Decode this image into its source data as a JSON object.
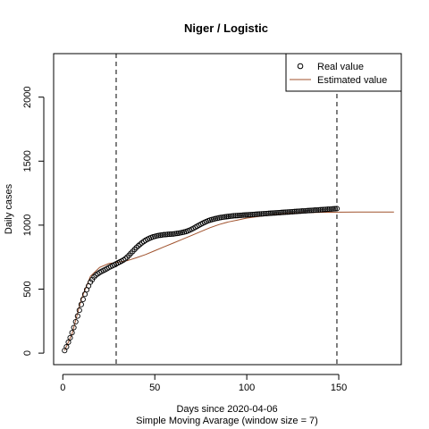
{
  "chart_data": {
    "type": "line",
    "title": "Niger / Logistic",
    "xlabel": "Days since 2020-04-06",
    "subtitle": "Simple Moving Avarage (window size = 7)",
    "ylabel": "Daily cases",
    "xlim": [
      -5,
      184
    ],
    "ylim": [
      -90,
      2340
    ],
    "x_ticks": [
      0,
      50,
      100,
      150
    ],
    "y_ticks": [
      0,
      500,
      1000,
      1500,
      2000
    ],
    "vlines": [
      29,
      149
    ],
    "legend": {
      "position": "top-right",
      "entries": [
        {
          "label": "Real value",
          "symbol": "circle",
          "color": "#000000"
        },
        {
          "label": "Estimated value",
          "symbol": "line",
          "color": "#a0522d"
        }
      ]
    },
    "series": [
      {
        "name": "Real value",
        "kind": "points",
        "color": "#000000",
        "x": [
          1,
          2,
          3,
          4,
          5,
          6,
          7,
          8,
          9,
          10,
          11,
          12,
          13,
          14,
          15,
          16,
          17,
          18,
          19,
          20,
          21,
          22,
          23,
          24,
          25,
          26,
          27,
          28,
          29,
          30,
          31,
          32,
          33,
          34,
          35,
          36,
          37,
          38,
          39,
          40,
          41,
          42,
          43,
          44,
          45,
          46,
          47,
          48,
          49,
          50,
          51,
          52,
          53,
          54,
          55,
          56,
          57,
          58,
          59,
          60,
          61,
          62,
          63,
          64,
          65,
          66,
          67,
          68,
          69,
          70,
          71,
          72,
          73,
          74,
          75,
          76,
          77,
          78,
          79,
          80,
          81,
          82,
          83,
          84,
          85,
          86,
          87,
          88,
          89,
          90,
          91,
          92,
          93,
          94,
          95,
          96,
          97,
          98,
          99,
          100,
          101,
          102,
          103,
          104,
          105,
          106,
          107,
          108,
          109,
          110,
          111,
          112,
          113,
          114,
          115,
          116,
          117,
          118,
          119,
          120,
          121,
          122,
          123,
          124,
          125,
          126,
          127,
          128,
          129,
          130,
          131,
          132,
          133,
          134,
          135,
          136,
          137,
          138,
          139,
          140,
          141,
          142,
          143,
          144,
          145,
          146,
          147,
          148,
          149
        ],
        "y": [
          20,
          50,
          85,
          120,
          160,
          200,
          245,
          290,
          335,
          380,
          420,
          460,
          495,
          525,
          555,
          575,
          595,
          610,
          620,
          630,
          638,
          645,
          652,
          660,
          668,
          676,
          683,
          690,
          698,
          705,
          712,
          720,
          728,
          738,
          750,
          765,
          780,
          795,
          810,
          825,
          838,
          850,
          862,
          872,
          882,
          890,
          897,
          903,
          908,
          912,
          916,
          919,
          921,
          923,
          925,
          926,
          928,
          929,
          930,
          931,
          933,
          935,
          937,
          940,
          943,
          946,
          950,
          955,
          961,
          968,
          975,
          983,
          991,
          999,
          1007,
          1015,
          1022,
          1028,
          1034,
          1039,
          1043,
          1047,
          1051,
          1054,
          1057,
          1060,
          1062,
          1064,
          1066,
          1068,
          1070,
          1071,
          1073,
          1074,
          1075,
          1076,
          1077,
          1078,
          1079,
          1080,
          1081,
          1082,
          1083,
          1084,
          1085,
          1086,
          1087,
          1088,
          1089,
          1090,
          1091,
          1092,
          1093,
          1094,
          1095,
          1096,
          1097,
          1098,
          1099,
          1100,
          1101,
          1102,
          1103,
          1104,
          1105,
          1106,
          1107,
          1108,
          1109,
          1110,
          1111,
          1112,
          1113,
          1114,
          1115,
          1116,
          1117,
          1118,
          1119,
          1120,
          1121,
          1122,
          1123,
          1124,
          1125,
          1126,
          1127,
          1128,
          1129
        ]
      },
      {
        "name": "Estimated value",
        "kind": "line",
        "color": "#a0522d",
        "x": [
          1,
          5,
          10,
          15,
          20,
          25,
          30,
          35,
          40,
          45,
          50,
          55,
          60,
          65,
          70,
          75,
          80,
          85,
          90,
          95,
          100,
          110,
          120,
          130,
          140,
          150,
          160,
          170,
          180
        ],
        "y": [
          20,
          150,
          420,
          600,
          670,
          700,
          710,
          722,
          745,
          770,
          800,
          830,
          860,
          890,
          920,
          950,
          980,
          1005,
          1025,
          1040,
          1055,
          1075,
          1090,
          1097,
          1100,
          1101,
          1102,
          1102,
          1102
        ]
      }
    ]
  }
}
